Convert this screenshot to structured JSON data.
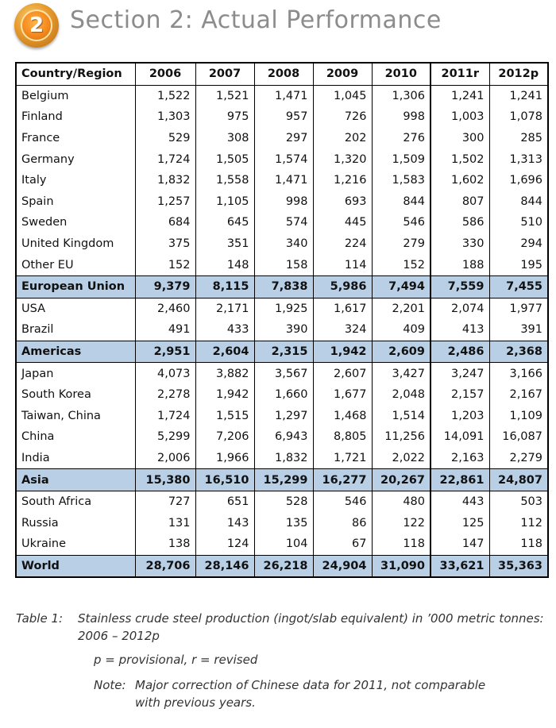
{
  "section": {
    "badge_number": "2",
    "title": "Section 2: Actual Performance"
  },
  "table": {
    "headers": [
      "Country/Region",
      "2006",
      "2007",
      "2008",
      "2009",
      "2010",
      "2011r",
      "2012p"
    ],
    "rows": [
      {
        "name": "Belgium",
        "values": [
          "1,522",
          "1,521",
          "1,471",
          "1,045",
          "1,306",
          "1,241",
          "1,241"
        ],
        "aggregate": false
      },
      {
        "name": "Finland",
        "values": [
          "1,303",
          "975",
          "957",
          "726",
          "998",
          "1,003",
          "1,078"
        ],
        "aggregate": false
      },
      {
        "name": "France",
        "values": [
          "529",
          "308",
          "297",
          "202",
          "276",
          "300",
          "285"
        ],
        "aggregate": false
      },
      {
        "name": "Germany",
        "values": [
          "1,724",
          "1,505",
          "1,574",
          "1,320",
          "1,509",
          "1,502",
          "1,313"
        ],
        "aggregate": false
      },
      {
        "name": "Italy",
        "values": [
          "1,832",
          "1,558",
          "1,471",
          "1,216",
          "1,583",
          "1,602",
          "1,696"
        ],
        "aggregate": false
      },
      {
        "name": "Spain",
        "values": [
          "1,257",
          "1,105",
          "998",
          "693",
          "844",
          "807",
          "844"
        ],
        "aggregate": false
      },
      {
        "name": "Sweden",
        "values": [
          "684",
          "645",
          "574",
          "445",
          "546",
          "586",
          "510"
        ],
        "aggregate": false
      },
      {
        "name": "United Kingdom",
        "values": [
          "375",
          "351",
          "340",
          "224",
          "279",
          "330",
          "294"
        ],
        "aggregate": false
      },
      {
        "name": "Other EU",
        "values": [
          "152",
          "148",
          "158",
          "114",
          "152",
          "188",
          "195"
        ],
        "aggregate": false
      },
      {
        "name": "European Union",
        "values": [
          "9,379",
          "8,115",
          "7,838",
          "5,986",
          "7,494",
          "7,559",
          "7,455"
        ],
        "aggregate": true
      },
      {
        "name": "USA",
        "values": [
          "2,460",
          "2,171",
          "1,925",
          "1,617",
          "2,201",
          "2,074",
          "1,977"
        ],
        "aggregate": false
      },
      {
        "name": "Brazil",
        "values": [
          "491",
          "433",
          "390",
          "324",
          "409",
          "413",
          "391"
        ],
        "aggregate": false
      },
      {
        "name": "Americas",
        "values": [
          "2,951",
          "2,604",
          "2,315",
          "1,942",
          "2,609",
          "2,486",
          "2,368"
        ],
        "aggregate": true
      },
      {
        "name": "Japan",
        "values": [
          "4,073",
          "3,882",
          "3,567",
          "2,607",
          "3,427",
          "3,247",
          "3,166"
        ],
        "aggregate": false
      },
      {
        "name": "South Korea",
        "values": [
          "2,278",
          "1,942",
          "1,660",
          "1,677",
          "2,048",
          "2,157",
          "2,167"
        ],
        "aggregate": false
      },
      {
        "name": "Taiwan, China",
        "values": [
          "1,724",
          "1,515",
          "1,297",
          "1,468",
          "1,514",
          "1,203",
          "1,109"
        ],
        "aggregate": false
      },
      {
        "name": "China",
        "values": [
          "5,299",
          "7,206",
          "6,943",
          "8,805",
          "11,256",
          "14,091",
          "16,087"
        ],
        "aggregate": false
      },
      {
        "name": "India",
        "values": [
          "2,006",
          "1,966",
          "1,832",
          "1,721",
          "2,022",
          "2,163",
          "2,279"
        ],
        "aggregate": false
      },
      {
        "name": "Asia",
        "values": [
          "15,380",
          "16,510",
          "15,299",
          "16,277",
          "20,267",
          "22,861",
          "24,807"
        ],
        "aggregate": true
      },
      {
        "name": "South Africa",
        "values": [
          "727",
          "651",
          "528",
          "546",
          "480",
          "443",
          "503"
        ],
        "aggregate": false
      },
      {
        "name": "Russia",
        "values": [
          "131",
          "143",
          "135",
          "86",
          "122",
          "125",
          "112"
        ],
        "aggregate": false
      },
      {
        "name": "Ukraine",
        "values": [
          "138",
          "124",
          "104",
          "67",
          "118",
          "147",
          "118"
        ],
        "aggregate": false
      },
      {
        "name": "World",
        "values": [
          "28,706",
          "28,146",
          "26,218",
          "24,904",
          "31,090",
          "33,621",
          "35,363"
        ],
        "aggregate": true
      }
    ]
  },
  "caption": {
    "label": "Table 1:",
    "text": "Stainless crude steel production (ingot/slab equivalent) in ’000 metric tonnes: 2006 – 2012p",
    "legend": "p = provisional, r = revised",
    "note_label": "Note:",
    "note_text": "Major correction of Chinese data for 2011, not comparable with previous years."
  },
  "colors": {
    "aggregate_row_bg": "#b8cfe6",
    "title_gray": "#8c8c8c",
    "badge_orange": "#f58a1f"
  }
}
